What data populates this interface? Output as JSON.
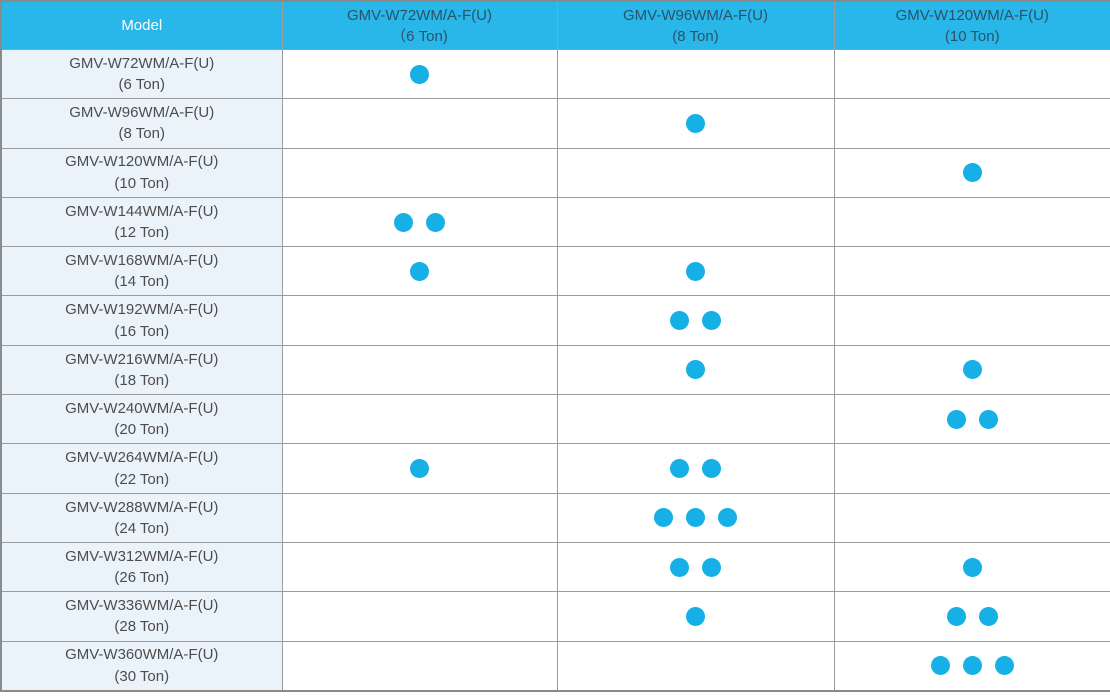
{
  "colors": {
    "header_bg": "#29b6e8",
    "header_text": "#2a536b",
    "model_header_text": "#ffffff",
    "row_label_bg": "#eaf2fa",
    "row_label_text": "#4d4d4d",
    "dot_color": "#16b0e6",
    "border_inner": "#9c9c9c",
    "border_outer": "#8a8a8a"
  },
  "table": {
    "header": {
      "model_label": "Model",
      "columns": [
        {
          "line1": "GMV-W72WM/A-F(U)",
          "line2": "（6 Ton)"
        },
        {
          "line1": "GMV-W96WM/A-F(U)",
          "line2": "(8 Ton)"
        },
        {
          "line1": "GMV-W120WM/A-F(U)",
          "line2": "(10 Ton)"
        }
      ]
    },
    "rows": [
      {
        "line1": "GMV-W72WM/A-F(U)",
        "line2": "(6 Ton)",
        "dots": [
          1,
          0,
          0
        ]
      },
      {
        "line1": "GMV-W96WM/A-F(U)",
        "line2": "(8 Ton)",
        "dots": [
          0,
          1,
          0
        ]
      },
      {
        "line1": "GMV-W120WM/A-F(U)",
        "line2": "(10 Ton)",
        "dots": [
          0,
          0,
          1
        ]
      },
      {
        "line1": "GMV-W144WM/A-F(U)",
        "line2": "(12 Ton)",
        "dots": [
          2,
          0,
          0
        ]
      },
      {
        "line1": "GMV-W168WM/A-F(U)",
        "line2": "(14 Ton)",
        "dots": [
          1,
          1,
          0
        ]
      },
      {
        "line1": "GMV-W192WM/A-F(U)",
        "line2": "(16 Ton)",
        "dots": [
          0,
          2,
          0
        ]
      },
      {
        "line1": "GMV-W216WM/A-F(U)",
        "line2": "(18 Ton)",
        "dots": [
          0,
          1,
          1
        ]
      },
      {
        "line1": "GMV-W240WM/A-F(U)",
        "line2": "(20 Ton)",
        "dots": [
          0,
          0,
          2
        ]
      },
      {
        "line1": "GMV-W264WM/A-F(U)",
        "line2": "(22 Ton)",
        "dots": [
          1,
          2,
          0
        ]
      },
      {
        "line1": "GMV-W288WM/A-F(U)",
        "line2": "(24 Ton)",
        "dots": [
          0,
          3,
          0
        ]
      },
      {
        "line1": "GMV-W312WM/A-F(U)",
        "line2": "(26 Ton)",
        "dots": [
          0,
          2,
          1
        ]
      },
      {
        "line1": "GMV-W336WM/A-F(U)",
        "line2": "(28 Ton)",
        "dots": [
          0,
          1,
          2
        ]
      },
      {
        "line1": "GMV-W360WM/A-F(U)",
        "line2": "(30 Ton)",
        "dots": [
          0,
          0,
          3
        ]
      }
    ]
  }
}
